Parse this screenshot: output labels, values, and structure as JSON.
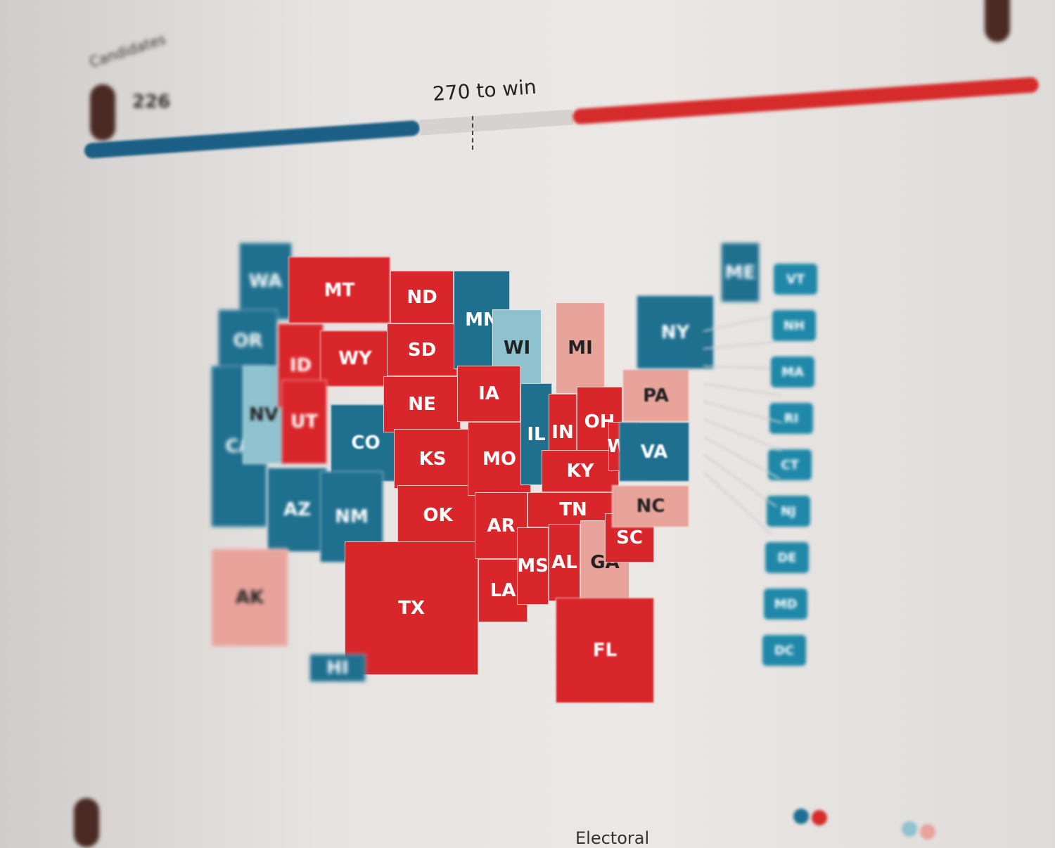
{
  "header": {
    "section_label": "Candidates",
    "left_count": "226",
    "win_threshold": "270 to win",
    "progress": {
      "dem_fraction": 0.36,
      "rep_fraction": 0.5
    }
  },
  "colors": {
    "rep": "#d9262b",
    "dem": "#1f6f8f",
    "lean_dem": "#8fc1cf",
    "lean_rep": "#e8a39b"
  },
  "states": [
    {
      "abbr": "WA",
      "party": "dem"
    },
    {
      "abbr": "OR",
      "party": "dem"
    },
    {
      "abbr": "CA",
      "party": "dem"
    },
    {
      "abbr": "NV",
      "party": "lean_dem"
    },
    {
      "abbr": "ID",
      "party": "rep"
    },
    {
      "abbr": "MT",
      "party": "rep"
    },
    {
      "abbr": "WY",
      "party": "rep"
    },
    {
      "abbr": "UT",
      "party": "rep"
    },
    {
      "abbr": "CO",
      "party": "dem"
    },
    {
      "abbr": "AZ",
      "party": "dem"
    },
    {
      "abbr": "NM",
      "party": "dem"
    },
    {
      "abbr": "ND",
      "party": "rep"
    },
    {
      "abbr": "SD",
      "party": "rep"
    },
    {
      "abbr": "NE",
      "party": "rep"
    },
    {
      "abbr": "KS",
      "party": "rep"
    },
    {
      "abbr": "OK",
      "party": "rep"
    },
    {
      "abbr": "TX",
      "party": "rep"
    },
    {
      "abbr": "MN",
      "party": "dem"
    },
    {
      "abbr": "WI",
      "party": "lean_dem"
    },
    {
      "abbr": "IA",
      "party": "rep"
    },
    {
      "abbr": "MO",
      "party": "rep"
    },
    {
      "abbr": "AR",
      "party": "rep"
    },
    {
      "abbr": "LA",
      "party": "rep"
    },
    {
      "abbr": "IL",
      "party": "dem"
    },
    {
      "abbr": "MI",
      "party": "lean_rep"
    },
    {
      "abbr": "IN",
      "party": "rep"
    },
    {
      "abbr": "OH",
      "party": "rep"
    },
    {
      "abbr": "KY",
      "party": "rep"
    },
    {
      "abbr": "TN",
      "party": "rep"
    },
    {
      "abbr": "MS",
      "party": "rep"
    },
    {
      "abbr": "AL",
      "party": "rep"
    },
    {
      "abbr": "GA",
      "party": "lean_rep"
    },
    {
      "abbr": "SC",
      "party": "rep"
    },
    {
      "abbr": "NC",
      "party": "lean_rep"
    },
    {
      "abbr": "FL",
      "party": "rep"
    },
    {
      "abbr": "WV",
      "party": "rep"
    },
    {
      "abbr": "VA",
      "party": "dem"
    },
    {
      "abbr": "PA",
      "party": "lean_rep"
    },
    {
      "abbr": "NY",
      "party": "dem"
    },
    {
      "abbr": "ME",
      "party": "dem"
    },
    {
      "abbr": "AK",
      "party": "lean_rep"
    },
    {
      "abbr": "HI",
      "party": "dem"
    }
  ],
  "small_states": [
    "VT",
    "NH",
    "MA",
    "RI",
    "CT",
    "NJ",
    "DE",
    "MD",
    "DC"
  ],
  "footer": {
    "label": "Electoral"
  }
}
